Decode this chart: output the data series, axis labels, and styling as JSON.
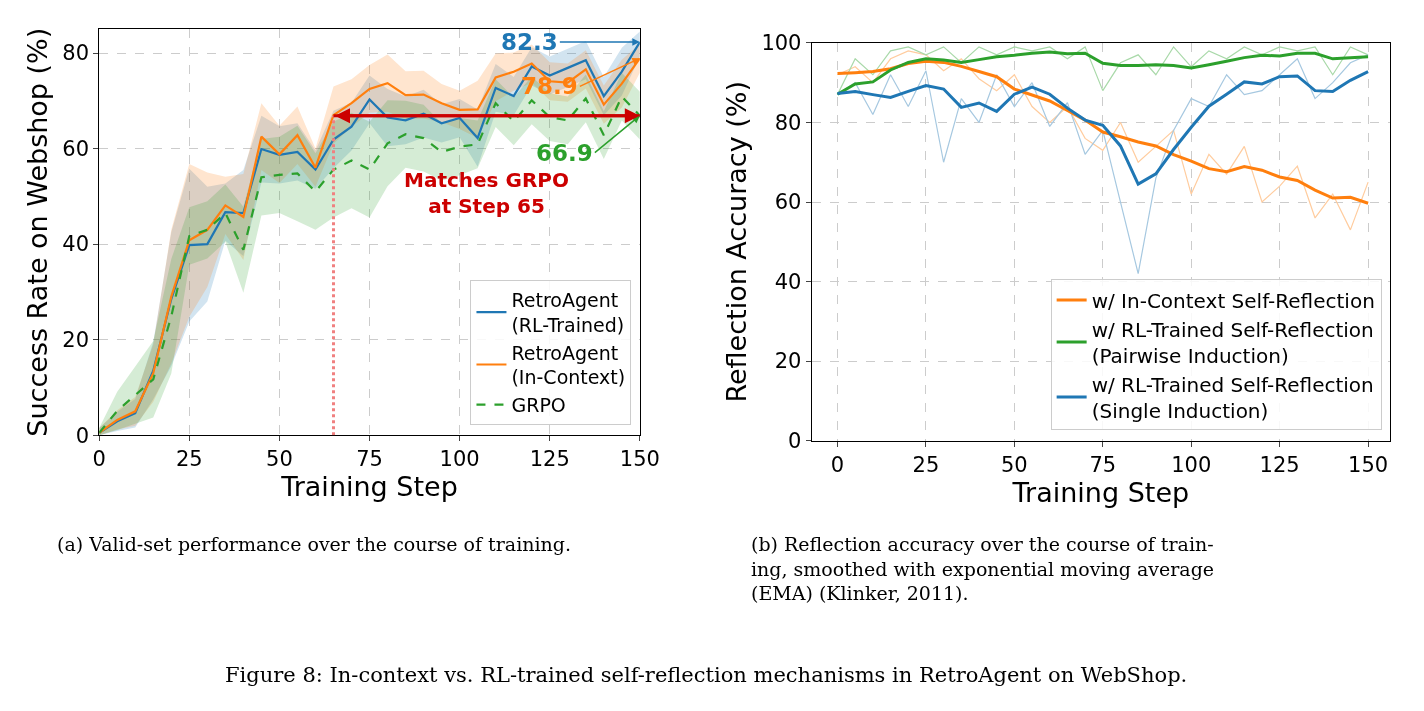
{
  "chart_data": [
    {
      "type": "line",
      "xlabel": "Training Step",
      "ylabel": "Success Rate on Webshop (%)",
      "xlim": [
        0,
        150
      ],
      "ylim": [
        0,
        85
      ],
      "xticks": [
        0,
        25,
        50,
        75,
        100,
        125,
        150
      ],
      "yticks": [
        0,
        20,
        40,
        60,
        80
      ],
      "grid": true,
      "legend": "bottom right",
      "marker": "none",
      "x": [
        0,
        5,
        10,
        15,
        20,
        25,
        30,
        35,
        40,
        45,
        50,
        55,
        60,
        65,
        70,
        75,
        80,
        85,
        90,
        95,
        100,
        105,
        110,
        115,
        120,
        125,
        130,
        135,
        140,
        145,
        150
      ],
      "series": [
        {
          "name": "RetroAgent\n(RL-Trained)",
          "color": "#1f77b4",
          "line_style": "solid",
          "values": [
            0.5,
            2.9,
            4.6,
            13.5,
            28.5,
            39.8,
            40,
            46.7,
            46.5,
            59.9,
            58.7,
            59.3,
            55.6,
            61.9,
            64.6,
            70.3,
            66.5,
            65.9,
            67.3,
            65.3,
            66.4,
            62.2,
            72.7,
            71,
            77.2,
            75.3,
            76.9,
            78.5,
            71,
            76.1,
            82.3
          ],
          "lower": [
            0,
            0.9,
            1.6,
            7.5,
            14.5,
            23.8,
            28,
            40.7,
            37.5,
            52.9,
            52.7,
            53.3,
            51.6,
            55.9,
            59.6,
            65.3,
            60.5,
            60.9,
            62.3,
            61.3,
            62.4,
            56.2,
            67.7,
            67,
            73.2,
            71.3,
            72.9,
            74.5,
            67,
            71.1,
            79.3
          ],
          "upper": [
            1.5,
            4.9,
            7.6,
            19.5,
            42.5,
            55.8,
            52,
            52.7,
            55.5,
            66.9,
            64.7,
            65.3,
            59.6,
            67.9,
            69.6,
            75.3,
            72.5,
            70.9,
            72.3,
            69.3,
            70.4,
            68.2,
            77.7,
            75,
            81.2,
            79.3,
            80.9,
            82.5,
            75,
            81.1,
            84.5
          ],
          "value_labels": [
            null,
            null,
            null,
            null,
            null,
            null,
            null,
            null,
            null,
            null,
            null,
            null,
            null,
            null,
            null,
            null,
            null,
            null,
            null,
            null,
            null,
            null,
            null,
            null,
            null,
            null,
            null,
            null,
            null,
            null,
            "82.3"
          ]
        },
        {
          "name": "RetroAgent\n(In-Context)",
          "color": "#ff7f0e",
          "line_style": "solid",
          "values": [
            0.5,
            3.2,
            5,
            13,
            29,
            40.8,
            43,
            48.1,
            45.7,
            62.5,
            58.8,
            62.8,
            56,
            67,
            69.5,
            72.5,
            73.7,
            71.2,
            71.3,
            69.5,
            68.1,
            68.2,
            74.9,
            76.1,
            77.8,
            74.1,
            73.8,
            76.6,
            69.2,
            73.6,
            78.9
          ],
          "lower": [
            0,
            1.2,
            2,
            7,
            15,
            24.8,
            31,
            42.1,
            36.7,
            55.5,
            52.8,
            56.8,
            52,
            61,
            64.5,
            67.5,
            67.7,
            66.2,
            66.3,
            65.5,
            64.1,
            62.2,
            69.9,
            72.1,
            73.8,
            70.1,
            69.8,
            72.6,
            65.2,
            68.6,
            75.9
          ],
          "upper": [
            1.5,
            5.2,
            8,
            19,
            43,
            56.8,
            55,
            54.1,
            54.7,
            69.5,
            64.8,
            68.8,
            60,
            73,
            74.5,
            77.5,
            79.7,
            76.2,
            76.3,
            73.5,
            72.1,
            74.2,
            79.9,
            80.1,
            81.8,
            78.1,
            77.8,
            80.6,
            73.2,
            78.6,
            81.9
          ],
          "value_labels": [
            null,
            null,
            null,
            null,
            null,
            null,
            null,
            null,
            null,
            null,
            null,
            null,
            null,
            null,
            null,
            null,
            null,
            null,
            null,
            null,
            null,
            null,
            null,
            null,
            null,
            null,
            null,
            null,
            null,
            null,
            "78.9"
          ]
        },
        {
          "name": "GRPO",
          "color": "#2ca02c",
          "line_style": "dashed",
          "values": [
            0.5,
            5.1,
            8.4,
            11.7,
            24.9,
            41.7,
            43,
            46.5,
            38.8,
            54,
            54.5,
            54.8,
            51,
            55.6,
            57.5,
            55.6,
            61.1,
            63,
            62.2,
            59.3,
            60.4,
            60.9,
            69.5,
            65.7,
            70.1,
            66.6,
            65.9,
            70.5,
            62.8,
            70.9,
            66.9
          ],
          "lower": [
            0,
            1.1,
            2.4,
            3.7,
            12.9,
            35.7,
            37,
            40.5,
            29.8,
            46,
            46.5,
            44.8,
            43,
            45.6,
            47.5,
            45.6,
            52.1,
            56,
            55.2,
            53.3,
            54.4,
            55.9,
            64.5,
            60.7,
            65.1,
            61.6,
            60.9,
            65.5,
            57.8,
            65.9,
            61.9
          ],
          "upper": [
            1.5,
            9.1,
            14.4,
            19.7,
            36.9,
            47.7,
            49,
            52.5,
            47.8,
            62,
            62.5,
            64.8,
            59,
            65.6,
            67.5,
            65.6,
            70.1,
            70,
            69.2,
            65.3,
            66.4,
            65.9,
            74.5,
            70.7,
            75.1,
            71.6,
            70.9,
            75.5,
            67.8,
            75.9,
            71.9
          ],
          "value_labels": [
            null,
            null,
            null,
            null,
            null,
            null,
            null,
            null,
            null,
            null,
            null,
            null,
            null,
            null,
            null,
            null,
            null,
            null,
            null,
            null,
            null,
            null,
            null,
            null,
            null,
            null,
            null,
            null,
            null,
            null,
            "66.9"
          ]
        }
      ],
      "ref_lines": [
        {
          "axis": "x",
          "value": 65,
          "color": "#f08080",
          "line_style": "dotted"
        },
        {
          "axis": "y",
          "value": 66.9,
          "label": "Matches GRPO\nat Step 65",
          "color": "#cc0000",
          "line_style": "solid"
        }
      ],
      "annotations": [
        "(a) Valid-set performance over the course of training."
      ]
    },
    {
      "type": "line",
      "xlabel": "Training Step",
      "ylabel": "Reflection Accuracy (%)",
      "xlim": [
        -7.3,
        156.2
      ],
      "ylim": [
        0,
        100
      ],
      "xticks": [
        0,
        25,
        50,
        75,
        100,
        125,
        150
      ],
      "yticks": [
        0,
        20,
        40,
        60,
        80,
        100
      ],
      "grid": true,
      "legend": "bottom right",
      "marker": "none",
      "x": [
        0,
        5,
        10,
        15,
        20,
        25,
        30,
        35,
        40,
        45,
        50,
        55,
        60,
        65,
        70,
        75,
        80,
        85,
        90,
        95,
        100,
        105,
        110,
        115,
        120,
        125,
        130,
        135,
        140,
        145,
        150
      ],
      "series": [
        {
          "color": "#ffcc9e",
          "line_style": "solid",
          "values": [
            92,
            94,
            90,
            96,
            98,
            97,
            93,
            96,
            91,
            88,
            92,
            84,
            80,
            84,
            76,
            73,
            80,
            70,
            74,
            78,
            62,
            72,
            67,
            74,
            60,
            64,
            69,
            56,
            62,
            53,
            65
          ]
        },
        {
          "color": "#a9d9a9",
          "line_style": "solid",
          "values": [
            87,
            96,
            92,
            98,
            99,
            97,
            99,
            95,
            99,
            97,
            99,
            98,
            99,
            96,
            99,
            88,
            95,
            97,
            92,
            99,
            94,
            98,
            96,
            99,
            97,
            99,
            98,
            99,
            92,
            99,
            97
          ]
        },
        {
          "color": "#a6c8e0",
          "line_style": "solid",
          "values": [
            87,
            90,
            82,
            92,
            84,
            93,
            70,
            86,
            80,
            92,
            84,
            90,
            79,
            85,
            72,
            78,
            60,
            42,
            66,
            78,
            86,
            84,
            92,
            87,
            88,
            92,
            96,
            86,
            90,
            95,
            97
          ]
        },
        {
          "name": "w/ In-Context Self-Reflection",
          "color": "#ff7f0e",
          "line_style": "solid",
          "values": [
            92.3,
            92.5,
            92.8,
            93.5,
            94.8,
            95.4,
            95.1,
            94.1,
            92.8,
            91.5,
            88.4,
            86.9,
            85.4,
            83,
            80.6,
            77.6,
            76.4,
            75.1,
            74.1,
            71.9,
            70.3,
            68.4,
            67.6,
            68.9,
            68,
            66.3,
            65.4,
            63,
            61,
            61.2,
            59.7
          ]
        },
        {
          "name": "w/ RL-Trained Self-Reflection\n(Pairwise Induction)",
          "color": "#2ca02c",
          "line_style": "solid",
          "values": [
            87.1,
            89.7,
            90.2,
            93.2,
            95.1,
            96,
            95.7,
            95.1,
            95.8,
            96.5,
            96.9,
            97.4,
            97.7,
            97.3,
            97.4,
            94.9,
            94.3,
            94.3,
            94.5,
            94.3,
            93.7,
            94.5,
            95.4,
            96.3,
            96.9,
            96.7,
            97.4,
            97.4,
            96,
            96.3,
            96.5
          ]
        },
        {
          "name": "w/ RL-Trained Self-Reflection\n(Single Induction)",
          "color": "#1f77b4",
          "line_style": "solid",
          "values": [
            87.3,
            87.8,
            87,
            86.3,
            87.8,
            89.3,
            88.4,
            83.8,
            84.9,
            82.8,
            87.1,
            88.9,
            87.1,
            83.6,
            80.6,
            79.3,
            74.1,
            64.5,
            67.1,
            73.2,
            78.8,
            84.1,
            87.1,
            90.2,
            89.7,
            91.5,
            91.7,
            88,
            87.8,
            90.6,
            92.8
          ]
        }
      ],
      "annotations": [
        "(b) Reflection accuracy over the course of train-\ning, smoothed with exponential moving average\n(EMA) (Klinker, 2011).",
        "Figure 8: In-context vs. RL-trained self-reflection mechanisms in RetroAgent on WebShop."
      ]
    }
  ]
}
